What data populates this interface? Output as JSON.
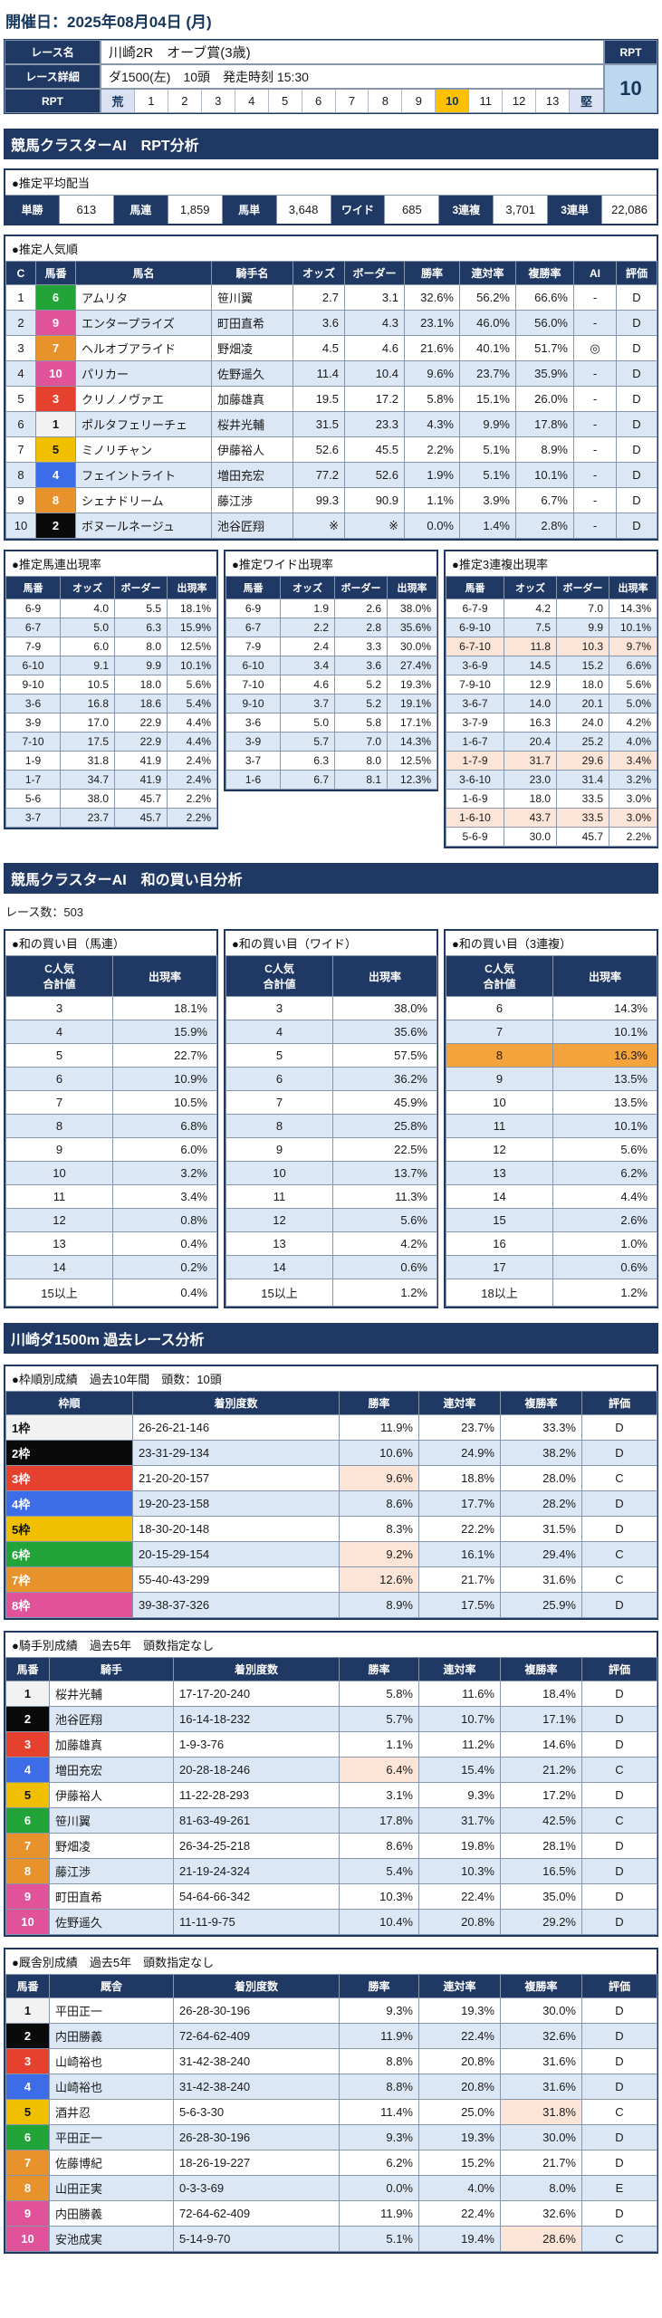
{
  "colors": {
    "header_navy": "#1F3864",
    "row_alt_blue": "#DCE7F5",
    "highlight_salmon": "#FCE4D6",
    "highlight_orange": "#F5A33C",
    "rpt_selected_orange": "#FFC000",
    "rpt_value_bg": "#BDD7EE",
    "scale_end_bg": "#D9E1F2",
    "waku": {
      "1": "#F2F2F2",
      "2": "#0A0A0A",
      "3": "#E6402F",
      "4": "#3C6CE8",
      "5": "#F0C000",
      "6": "#22A439",
      "7": "#E8922C",
      "8": "#E0539B"
    }
  },
  "race_header": {
    "date": "開催日：2025年08月04日 (月)",
    "race_name_label": "レース名",
    "race_name": "川崎2R　オーブ賞(3歳)",
    "race_detail_label": "レース詳細",
    "race_detail": "ダ1500(左)　10頭　発走時刻 15:30",
    "rpt_label": "RPT",
    "rpt_value": "10",
    "scale": [
      "荒",
      "1",
      "2",
      "3",
      "4",
      "5",
      "6",
      "7",
      "8",
      "9",
      "10",
      "11",
      "12",
      "13",
      "堅"
    ],
    "selected": "10"
  },
  "sections": {
    "rpt_title": "競馬クラスターAI　RPT分析",
    "wa_title": "競馬クラスターAI　和の買い目分析",
    "race_count": "レース数：503",
    "past_title": "川崎ダ1500m 過去レース分析"
  },
  "avg_payout": {
    "title": "●推定平均配当",
    "items": [
      {
        "label": "単勝",
        "value": "613"
      },
      {
        "label": "馬連",
        "value": "1,859"
      },
      {
        "label": "馬単",
        "value": "3,648"
      },
      {
        "label": "ワイド",
        "value": "685"
      },
      {
        "label": "3連複",
        "value": "3,701"
      },
      {
        "label": "3連単",
        "value": "22,086"
      }
    ]
  },
  "popularity": {
    "title": "●推定人気順",
    "headers": [
      "C",
      "馬番",
      "馬名",
      "騎手名",
      "オッズ",
      "ボーダー",
      "勝率",
      "連対率",
      "複勝率",
      "AI",
      "評価"
    ],
    "rows": [
      {
        "c": "1",
        "num": "6",
        "waku": 6,
        "horse": "アムリタ",
        "jockey": "笹川翼",
        "odds": "2.7",
        "border": "3.1",
        "win": "32.6%",
        "ren": "56.2%",
        "fuku": "66.6%",
        "ai": "-",
        "ev": "D"
      },
      {
        "c": "2",
        "num": "9",
        "waku": 8,
        "horse": "エンタープライズ",
        "jockey": "町田直希",
        "odds": "3.6",
        "border": "4.3",
        "win": "23.1%",
        "ren": "46.0%",
        "fuku": "56.0%",
        "ai": "-",
        "ev": "D"
      },
      {
        "c": "3",
        "num": "7",
        "waku": 7,
        "horse": "ヘルオブアライド",
        "jockey": "野畑凌",
        "odds": "4.5",
        "border": "4.6",
        "win": "21.6%",
        "ren": "40.1%",
        "fuku": "51.7%",
        "ai": "◎",
        "ev": "D"
      },
      {
        "c": "4",
        "num": "10",
        "waku": 8,
        "horse": "パリカー",
        "jockey": "佐野遥久",
        "odds": "11.4",
        "border": "10.4",
        "win": "9.6%",
        "ren": "23.7%",
        "fuku": "35.9%",
        "ai": "-",
        "ev": "D"
      },
      {
        "c": "5",
        "num": "3",
        "waku": 3,
        "horse": "クリノノヴァエ",
        "jockey": "加藤雄真",
        "odds": "19.5",
        "border": "17.2",
        "win": "5.8%",
        "ren": "15.1%",
        "fuku": "26.0%",
        "ai": "-",
        "ev": "D"
      },
      {
        "c": "6",
        "num": "1",
        "waku": 1,
        "horse": "ポルタフェリーチェ",
        "jockey": "桜井光輔",
        "odds": "31.5",
        "border": "23.3",
        "win": "4.3%",
        "ren": "9.9%",
        "fuku": "17.8%",
        "ai": "-",
        "ev": "D"
      },
      {
        "c": "7",
        "num": "5",
        "waku": 5,
        "horse": "ミノリチャン",
        "jockey": "伊藤裕人",
        "odds": "52.6",
        "border": "45.5",
        "win": "2.2%",
        "ren": "5.1%",
        "fuku": "8.9%",
        "ai": "-",
        "ev": "D"
      },
      {
        "c": "8",
        "num": "4",
        "waku": 4,
        "horse": "フェイントライト",
        "jockey": "増田充宏",
        "odds": "77.2",
        "border": "52.6",
        "win": "1.9%",
        "ren": "5.1%",
        "fuku": "10.1%",
        "ai": "-",
        "ev": "D"
      },
      {
        "c": "9",
        "num": "8",
        "waku": 7,
        "horse": "シェナドリーム",
        "jockey": "藤江渉",
        "odds": "99.3",
        "border": "90.9",
        "win": "1.1%",
        "ren": "3.9%",
        "fuku": "6.7%",
        "ai": "-",
        "ev": "D"
      },
      {
        "c": "10",
        "num": "2",
        "waku": 2,
        "horse": "ボヌールネージュ",
        "jockey": "池谷匠翔",
        "odds": "※",
        "border": "※",
        "win": "0.0%",
        "ren": "1.4%",
        "fuku": "2.8%",
        "ai": "-",
        "ev": "D"
      }
    ]
  },
  "umaren_rate": {
    "title": "●推定馬連出現率",
    "headers": [
      "馬番",
      "オッズ",
      "ボーダー",
      "出現率"
    ],
    "rows": [
      {
        "pair": "6-9",
        "odds": "4.0",
        "border": "5.5",
        "rate": "18.1%"
      },
      {
        "pair": "6-7",
        "odds": "5.0",
        "border": "6.3",
        "rate": "15.9%"
      },
      {
        "pair": "7-9",
        "odds": "6.0",
        "border": "8.0",
        "rate": "12.5%"
      },
      {
        "pair": "6-10",
        "odds": "9.1",
        "border": "9.9",
        "rate": "10.1%"
      },
      {
        "pair": "9-10",
        "odds": "10.5",
        "border": "18.0",
        "rate": "5.6%"
      },
      {
        "pair": "3-6",
        "odds": "16.8",
        "border": "18.6",
        "rate": "5.4%"
      },
      {
        "pair": "3-9",
        "odds": "17.0",
        "border": "22.9",
        "rate": "4.4%"
      },
      {
        "pair": "7-10",
        "odds": "17.5",
        "border": "22.9",
        "rate": "4.4%"
      },
      {
        "pair": "1-9",
        "odds": "31.8",
        "border": "41.9",
        "rate": "2.4%"
      },
      {
        "pair": "1-7",
        "odds": "34.7",
        "border": "41.9",
        "rate": "2.4%"
      },
      {
        "pair": "5-6",
        "odds": "38.0",
        "border": "45.7",
        "rate": "2.2%"
      },
      {
        "pair": "3-7",
        "odds": "23.7",
        "border": "45.7",
        "rate": "2.2%"
      }
    ]
  },
  "wide_rate": {
    "title": "●推定ワイド出現率",
    "headers": [
      "馬番",
      "オッズ",
      "ボーダー",
      "出現率"
    ],
    "rows": [
      {
        "pair": "6-9",
        "odds": "1.9",
        "border": "2.6",
        "rate": "38.0%"
      },
      {
        "pair": "6-7",
        "odds": "2.2",
        "border": "2.8",
        "rate": "35.6%"
      },
      {
        "pair": "7-9",
        "odds": "2.4",
        "border": "3.3",
        "rate": "30.0%"
      },
      {
        "pair": "6-10",
        "odds": "3.4",
        "border": "3.6",
        "rate": "27.4%"
      },
      {
        "pair": "7-10",
        "odds": "4.6",
        "border": "5.2",
        "rate": "19.3%"
      },
      {
        "pair": "9-10",
        "odds": "3.7",
        "border": "5.2",
        "rate": "19.1%"
      },
      {
        "pair": "3-6",
        "odds": "5.0",
        "border": "5.8",
        "rate": "17.1%"
      },
      {
        "pair": "3-9",
        "odds": "5.7",
        "border": "7.0",
        "rate": "14.3%"
      },
      {
        "pair": "3-7",
        "odds": "6.3",
        "border": "8.0",
        "rate": "12.5%"
      },
      {
        "pair": "1-6",
        "odds": "6.7",
        "border": "8.1",
        "rate": "12.3%"
      }
    ]
  },
  "sanrenpuku_rate": {
    "title": "●推定3連複出現率",
    "headers": [
      "馬番",
      "オッズ",
      "ボーダー",
      "出現率"
    ],
    "rows": [
      {
        "pair": "6-7-9",
        "odds": "4.2",
        "border": "7.0",
        "rate": "14.3%",
        "hl": false
      },
      {
        "pair": "6-9-10",
        "odds": "7.5",
        "border": "9.9",
        "rate": "10.1%",
        "hl": false
      },
      {
        "pair": "6-7-10",
        "odds": "11.8",
        "border": "10.3",
        "rate": "9.7%",
        "hl": true
      },
      {
        "pair": "3-6-9",
        "odds": "14.5",
        "border": "15.2",
        "rate": "6.6%",
        "hl": false
      },
      {
        "pair": "7-9-10",
        "odds": "12.9",
        "border": "18.0",
        "rate": "5.6%",
        "hl": false
      },
      {
        "pair": "3-6-7",
        "odds": "14.0",
        "border": "20.1",
        "rate": "5.0%",
        "hl": false
      },
      {
        "pair": "3-7-9",
        "odds": "16.3",
        "border": "24.0",
        "rate": "4.2%",
        "hl": false
      },
      {
        "pair": "1-6-7",
        "odds": "20.4",
        "border": "25.2",
        "rate": "4.0%",
        "hl": false
      },
      {
        "pair": "1-7-9",
        "odds": "31.7",
        "border": "29.6",
        "rate": "3.4%",
        "hl": true
      },
      {
        "pair": "3-6-10",
        "odds": "23.0",
        "border": "31.4",
        "rate": "3.2%",
        "hl": false
      },
      {
        "pair": "1-6-9",
        "odds": "18.0",
        "border": "33.5",
        "rate": "3.0%",
        "hl": false
      },
      {
        "pair": "1-6-10",
        "odds": "43.7",
        "border": "33.5",
        "rate": "3.0%",
        "hl": true
      },
      {
        "pair": "5-6-9",
        "odds": "30.0",
        "border": "45.7",
        "rate": "2.2%",
        "hl": false
      }
    ]
  },
  "wa_umaren": {
    "title": "●和の買い目（馬連）",
    "headers": [
      "C人気\n合計値",
      "出現率"
    ],
    "rows": [
      {
        "sum": "3",
        "rate": "18.1%"
      },
      {
        "sum": "4",
        "rate": "15.9%"
      },
      {
        "sum": "5",
        "rate": "22.7%"
      },
      {
        "sum": "6",
        "rate": "10.9%"
      },
      {
        "sum": "7",
        "rate": "10.5%"
      },
      {
        "sum": "8",
        "rate": "6.8%"
      },
      {
        "sum": "9",
        "rate": "6.0%"
      },
      {
        "sum": "10",
        "rate": "3.2%"
      },
      {
        "sum": "11",
        "rate": "3.4%"
      },
      {
        "sum": "12",
        "rate": "0.8%"
      },
      {
        "sum": "13",
        "rate": "0.4%"
      },
      {
        "sum": "14",
        "rate": "0.2%"
      },
      {
        "sum": "15以上",
        "rate": "0.4%"
      }
    ]
  },
  "wa_wide": {
    "title": "●和の買い目（ワイド）",
    "headers": [
      "C人気\n合計値",
      "出現率"
    ],
    "rows": [
      {
        "sum": "3",
        "rate": "38.0%"
      },
      {
        "sum": "4",
        "rate": "35.6%"
      },
      {
        "sum": "5",
        "rate": "57.5%"
      },
      {
        "sum": "6",
        "rate": "36.2%"
      },
      {
        "sum": "7",
        "rate": "45.9%"
      },
      {
        "sum": "8",
        "rate": "25.8%"
      },
      {
        "sum": "9",
        "rate": "22.5%"
      },
      {
        "sum": "10",
        "rate": "13.7%"
      },
      {
        "sum": "11",
        "rate": "11.3%"
      },
      {
        "sum": "12",
        "rate": "5.6%"
      },
      {
        "sum": "13",
        "rate": "4.2%"
      },
      {
        "sum": "14",
        "rate": "0.6%"
      },
      {
        "sum": "15以上",
        "rate": "1.2%"
      }
    ]
  },
  "wa_sanrenpuku": {
    "title": "●和の買い目（3連複）",
    "headers": [
      "C人気\n合計値",
      "出現率"
    ],
    "rows": [
      {
        "sum": "6",
        "rate": "14.3%",
        "hl": false
      },
      {
        "sum": "7",
        "rate": "10.1%",
        "hl": false
      },
      {
        "sum": "8",
        "rate": "16.3%",
        "hl": true
      },
      {
        "sum": "9",
        "rate": "13.5%",
        "hl": false
      },
      {
        "sum": "10",
        "rate": "13.5%",
        "hl": false
      },
      {
        "sum": "11",
        "rate": "10.1%",
        "hl": false
      },
      {
        "sum": "12",
        "rate": "5.6%",
        "hl": false
      },
      {
        "sum": "13",
        "rate": "6.2%",
        "hl": false
      },
      {
        "sum": "14",
        "rate": "4.4%",
        "hl": false
      },
      {
        "sum": "15",
        "rate": "2.6%",
        "hl": false
      },
      {
        "sum": "16",
        "rate": "1.0%",
        "hl": false
      },
      {
        "sum": "17",
        "rate": "0.6%",
        "hl": false
      },
      {
        "sum": "18以上",
        "rate": "1.2%",
        "hl": false
      }
    ]
  },
  "waku_table": {
    "title": "●枠順別成績　過去10年間　頭数：10頭",
    "headers": [
      "枠順",
      "着別度数",
      "勝率",
      "連対率",
      "複勝率",
      "評価"
    ],
    "rows": [
      {
        "label": "1枠",
        "waku": 1,
        "record": "26-26-21-146",
        "win": "11.9%",
        "ren": "23.7%",
        "fuku": "33.3%",
        "ev": "D",
        "hl_win": false
      },
      {
        "label": "2枠",
        "waku": 2,
        "record": "23-31-29-134",
        "win": "10.6%",
        "ren": "24.9%",
        "fuku": "38.2%",
        "ev": "D",
        "hl_win": false
      },
      {
        "label": "3枠",
        "waku": 3,
        "record": "21-20-20-157",
        "win": "9.6%",
        "ren": "18.8%",
        "fuku": "28.0%",
        "ev": "C",
        "hl_win": true
      },
      {
        "label": "4枠",
        "waku": 4,
        "record": "19-20-23-158",
        "win": "8.6%",
        "ren": "17.7%",
        "fuku": "28.2%",
        "ev": "D",
        "hl_win": false
      },
      {
        "label": "5枠",
        "waku": 5,
        "record": "18-30-20-148",
        "win": "8.3%",
        "ren": "22.2%",
        "fuku": "31.5%",
        "ev": "D",
        "hl_win": false
      },
      {
        "label": "6枠",
        "waku": 6,
        "record": "20-15-29-154",
        "win": "9.2%",
        "ren": "16.1%",
        "fuku": "29.4%",
        "ev": "C",
        "hl_win": true
      },
      {
        "label": "7枠",
        "waku": 7,
        "record": "55-40-43-299",
        "win": "12.6%",
        "ren": "21.7%",
        "fuku": "31.6%",
        "ev": "C",
        "hl_win": true
      },
      {
        "label": "8枠",
        "waku": 8,
        "record": "39-38-37-326",
        "win": "8.9%",
        "ren": "17.5%",
        "fuku": "25.9%",
        "ev": "D",
        "hl_win": false
      }
    ]
  },
  "jockey_table": {
    "title": "●騎手別成績　過去5年　頭数指定なし",
    "headers": [
      "馬番",
      "騎手",
      "着別度数",
      "勝率",
      "連対率",
      "複勝率",
      "評価"
    ],
    "rows": [
      {
        "num": "1",
        "waku": 1,
        "name": "桜井光輔",
        "record": "17-17-20-240",
        "win": "5.8%",
        "ren": "11.6%",
        "fuku": "18.4%",
        "ev": "D",
        "hl_win": false,
        "hl_fuku": false
      },
      {
        "num": "2",
        "waku": 2,
        "name": "池谷匠翔",
        "record": "16-14-18-232",
        "win": "5.7%",
        "ren": "10.7%",
        "fuku": "17.1%",
        "ev": "D",
        "hl_win": false,
        "hl_fuku": false
      },
      {
        "num": "3",
        "waku": 3,
        "name": "加藤雄真",
        "record": "1-9-3-76",
        "win": "1.1%",
        "ren": "11.2%",
        "fuku": "14.6%",
        "ev": "D",
        "hl_win": false,
        "hl_fuku": false
      },
      {
        "num": "4",
        "waku": 4,
        "name": "増田充宏",
        "record": "20-28-18-246",
        "win": "6.4%",
        "ren": "15.4%",
        "fuku": "21.2%",
        "ev": "C",
        "hl_win": true,
        "hl_fuku": false
      },
      {
        "num": "5",
        "waku": 5,
        "name": "伊藤裕人",
        "record": "11-22-28-293",
        "win": "3.1%",
        "ren": "9.3%",
        "fuku": "17.2%",
        "ev": "D",
        "hl_win": false,
        "hl_fuku": false
      },
      {
        "num": "6",
        "waku": 6,
        "name": "笹川翼",
        "record": "81-63-49-261",
        "win": "17.8%",
        "ren": "31.7%",
        "fuku": "42.5%",
        "ev": "C",
        "hl_win": false,
        "hl_fuku": false
      },
      {
        "num": "7",
        "waku": 7,
        "name": "野畑凌",
        "record": "26-34-25-218",
        "win": "8.6%",
        "ren": "19.8%",
        "fuku": "28.1%",
        "ev": "D",
        "hl_win": false,
        "hl_fuku": false
      },
      {
        "num": "8",
        "waku": 7,
        "name": "藤江渉",
        "record": "21-19-24-324",
        "win": "5.4%",
        "ren": "10.3%",
        "fuku": "16.5%",
        "ev": "D",
        "hl_win": false,
        "hl_fuku": false
      },
      {
        "num": "9",
        "waku": 8,
        "name": "町田直希",
        "record": "54-64-66-342",
        "win": "10.3%",
        "ren": "22.4%",
        "fuku": "35.0%",
        "ev": "D",
        "hl_win": false,
        "hl_fuku": false
      },
      {
        "num": "10",
        "waku": 8,
        "name": "佐野遥久",
        "record": "11-11-9-75",
        "win": "10.4%",
        "ren": "20.8%",
        "fuku": "29.2%",
        "ev": "D",
        "hl_win": false,
        "hl_fuku": false
      }
    ]
  },
  "stable_table": {
    "title": "●厩舎別成績　過去5年　頭数指定なし",
    "headers": [
      "馬番",
      "厩舎",
      "着別度数",
      "勝率",
      "連対率",
      "複勝率",
      "評価"
    ],
    "rows": [
      {
        "num": "1",
        "waku": 1,
        "name": "平田正一",
        "record": "26-28-30-196",
        "win": "9.3%",
        "ren": "19.3%",
        "fuku": "30.0%",
        "ev": "D",
        "hl_win": false,
        "hl_fuku": false
      },
      {
        "num": "2",
        "waku": 2,
        "name": "内田勝義",
        "record": "72-64-62-409",
        "win": "11.9%",
        "ren": "22.4%",
        "fuku": "32.6%",
        "ev": "D",
        "hl_win": false,
        "hl_fuku": false
      },
      {
        "num": "3",
        "waku": 3,
        "name": "山崎裕也",
        "record": "31-42-38-240",
        "win": "8.8%",
        "ren": "20.8%",
        "fuku": "31.6%",
        "ev": "D",
        "hl_win": false,
        "hl_fuku": false
      },
      {
        "num": "4",
        "waku": 4,
        "name": "山崎裕也",
        "record": "31-42-38-240",
        "win": "8.8%",
        "ren": "20.8%",
        "fuku": "31.6%",
        "ev": "D",
        "hl_win": false,
        "hl_fuku": false
      },
      {
        "num": "5",
        "waku": 5,
        "name": "酒井忍",
        "record": "5-6-3-30",
        "win": "11.4%",
        "ren": "25.0%",
        "fuku": "31.8%",
        "ev": "C",
        "hl_win": false,
        "hl_fuku": true
      },
      {
        "num": "6",
        "waku": 6,
        "name": "平田正一",
        "record": "26-28-30-196",
        "win": "9.3%",
        "ren": "19.3%",
        "fuku": "30.0%",
        "ev": "D",
        "hl_win": false,
        "hl_fuku": false
      },
      {
        "num": "7",
        "waku": 7,
        "name": "佐藤博紀",
        "record": "18-26-19-227",
        "win": "6.2%",
        "ren": "15.2%",
        "fuku": "21.7%",
        "ev": "D",
        "hl_win": false,
        "hl_fuku": false
      },
      {
        "num": "8",
        "waku": 7,
        "name": "山田正実",
        "record": "0-3-3-69",
        "win": "0.0%",
        "ren": "4.0%",
        "fuku": "8.0%",
        "ev": "E",
        "hl_win": false,
        "hl_fuku": false
      },
      {
        "num": "9",
        "waku": 8,
        "name": "内田勝義",
        "record": "72-64-62-409",
        "win": "11.9%",
        "ren": "22.4%",
        "fuku": "32.6%",
        "ev": "D",
        "hl_win": false,
        "hl_fuku": false
      },
      {
        "num": "10",
        "waku": 8,
        "name": "安池成実",
        "record": "5-14-9-70",
        "win": "5.1%",
        "ren": "19.4%",
        "fuku": "28.6%",
        "ev": "C",
        "hl_win": false,
        "hl_fuku": true
      }
    ]
  }
}
